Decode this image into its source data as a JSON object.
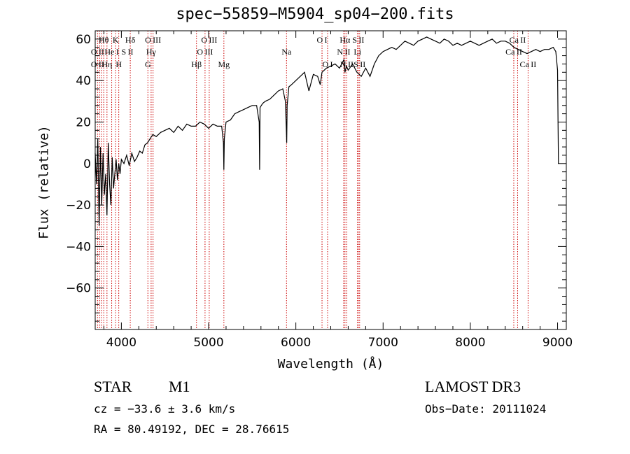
{
  "chart_data": {
    "type": "line",
    "title": "spec−55859−M5904_sp04−200.fits",
    "xlabel": "Wavelength (Å)",
    "ylabel": "Flux (relative)",
    "xlim": [
      3700,
      9100
    ],
    "ylim": [
      -80,
      64
    ],
    "x_ticks": [
      4000,
      5000,
      6000,
      7000,
      8000,
      9000
    ],
    "y_ticks": [
      -60,
      -40,
      -20,
      0,
      20,
      40,
      60
    ],
    "x_tick_labels": [
      "4000",
      "5000",
      "6000",
      "7000",
      "8000",
      "9000"
    ],
    "y_tick_labels": [
      "−60",
      "−40",
      "−20",
      "0",
      "20",
      "40",
      "60"
    ],
    "grid": false,
    "series": [
      {
        "name": "flux",
        "color": "#000000",
        "x": [
          3700,
          3715,
          3730,
          3745,
          3760,
          3775,
          3790,
          3805,
          3820,
          3835,
          3850,
          3865,
          3880,
          3895,
          3910,
          3925,
          3940,
          3955,
          3970,
          3985,
          4000,
          4030,
          4060,
          4090,
          4120,
          4150,
          4180,
          4210,
          4240,
          4270,
          4300,
          4330,
          4360,
          4400,
          4450,
          4500,
          4550,
          4600,
          4650,
          4700,
          4750,
          4800,
          4850,
          4900,
          4950,
          5000,
          5050,
          5100,
          5150,
          5170,
          5175,
          5180,
          5200,
          5250,
          5300,
          5350,
          5400,
          5450,
          5500,
          5550,
          5580,
          5585,
          5590,
          5620,
          5650,
          5700,
          5750,
          5800,
          5850,
          5880,
          5890,
          5895,
          5900,
          5920,
          5950,
          6000,
          6050,
          6100,
          6150,
          6200,
          6250,
          6280,
          6300,
          6350,
          6400,
          6450,
          6500,
          6550,
          6563,
          6580,
          6600,
          6650,
          6700,
          6750,
          6800,
          6850,
          6900,
          6950,
          7000,
          7050,
          7100,
          7150,
          7200,
          7250,
          7300,
          7350,
          7400,
          7450,
          7500,
          7550,
          7600,
          7650,
          7700,
          7750,
          7800,
          7850,
          7900,
          7950,
          8000,
          8050,
          8100,
          8150,
          8200,
          8250,
          8300,
          8350,
          8400,
          8450,
          8500,
          8550,
          8600,
          8650,
          8700,
          8750,
          8800,
          8850,
          8900,
          8950,
          8980,
          9000,
          9005,
          9010
        ],
        "y": [
          5,
          -10,
          12,
          -30,
          8,
          -20,
          5,
          -15,
          -5,
          -25,
          10,
          -10,
          -20,
          3,
          -12,
          -5,
          2,
          -8,
          0,
          -5,
          2,
          0,
          4,
          -1,
          5,
          1,
          3,
          6,
          5,
          9,
          10,
          12,
          14,
          13,
          15,
          16,
          17,
          15,
          18,
          16,
          19,
          18,
          18,
          20,
          19,
          17,
          19,
          18,
          18,
          10,
          -3,
          12,
          20,
          21,
          24,
          25,
          26,
          27,
          28,
          28,
          20,
          -3,
          27,
          29,
          30,
          31,
          33,
          35,
          36,
          30,
          18,
          10,
          28,
          37,
          38,
          40,
          42,
          44,
          35,
          43,
          42,
          38,
          44,
          46,
          47,
          48,
          46,
          50,
          44,
          47,
          45,
          48,
          44,
          42,
          46,
          42,
          48,
          52,
          54,
          55,
          56,
          55,
          57,
          59,
          58,
          57,
          59,
          60,
          61,
          60,
          59,
          58,
          60,
          59,
          57,
          58,
          57,
          58,
          59,
          58,
          57,
          58,
          59,
          60,
          58,
          59,
          59,
          58,
          56,
          55,
          54,
          53,
          54,
          55,
          54,
          55,
          55,
          56,
          54,
          45,
          20,
          0
        ]
      }
    ],
    "line_markers": {
      "color": "#cc0000",
      "wavelengths": [
        3727,
        3750,
        3771,
        3798,
        3835,
        3889,
        3934,
        3970,
        4102,
        4304,
        4341,
        4363,
        4861,
        4959,
        5007,
        5175,
        5893,
        6300,
        6364,
        6548,
        6563,
        6584,
        6707,
        6716,
        6731,
        8498,
        8542,
        8662
      ],
      "labels": [
        {
          "text": "O II",
          "wl": 3727,
          "row": 3
        },
        {
          "text": "O II",
          "wl": 3727,
          "row": 2
        },
        {
          "text": "Hθ",
          "wl": 3798,
          "row": 1
        },
        {
          "text": "Hη",
          "wl": 3835,
          "row": 3
        },
        {
          "text": "He I",
          "wl": 3889,
          "row": 2
        },
        {
          "text": "K",
          "wl": 3934,
          "row": 1
        },
        {
          "text": "H",
          "wl": 3970,
          "row": 3
        },
        {
          "text": "S II",
          "wl": 4069,
          "row": 2
        },
        {
          "text": "Hδ",
          "wl": 4102,
          "row": 1
        },
        {
          "text": "O III",
          "wl": 4363,
          "row": 1
        },
        {
          "text": "Hγ",
          "wl": 4341,
          "row": 2
        },
        {
          "text": "G",
          "wl": 4304,
          "row": 3
        },
        {
          "text": "Hβ",
          "wl": 4861,
          "row": 3
        },
        {
          "text": "O III",
          "wl": 5007,
          "row": 1
        },
        {
          "text": "O III",
          "wl": 4959,
          "row": 2
        },
        {
          "text": "Mg",
          "wl": 5175,
          "row": 3
        },
        {
          "text": "Na",
          "wl": 5893,
          "row": 2
        },
        {
          "text": "O I",
          "wl": 6300,
          "row": 1
        },
        {
          "text": "O I",
          "wl": 6364,
          "row": 3
        },
        {
          "text": "Hα",
          "wl": 6563,
          "row": 1
        },
        {
          "text": "N II",
          "wl": 6548,
          "row": 2
        },
        {
          "text": "N II",
          "wl": 6584,
          "row": 3
        },
        {
          "text": "S II",
          "wl": 6716,
          "row": 1
        },
        {
          "text": "Li",
          "wl": 6707,
          "row": 2
        },
        {
          "text": "S II",
          "wl": 6731,
          "row": 3
        },
        {
          "text": "Ca II",
          "wl": 8542,
          "row": 1
        },
        {
          "text": "Ca II",
          "wl": 8498,
          "row": 2
        },
        {
          "text": "Ca II",
          "wl": 8662,
          "row": 3
        }
      ]
    }
  },
  "info": {
    "object_class": "STAR",
    "subclass": "M1",
    "survey": "LAMOST DR3",
    "cz": "cz = −33.6 ± 3.6 km/s",
    "obs_date": "Obs−Date: 20111024",
    "coords": "RA =  80.49192, DEC =  28.76615"
  }
}
